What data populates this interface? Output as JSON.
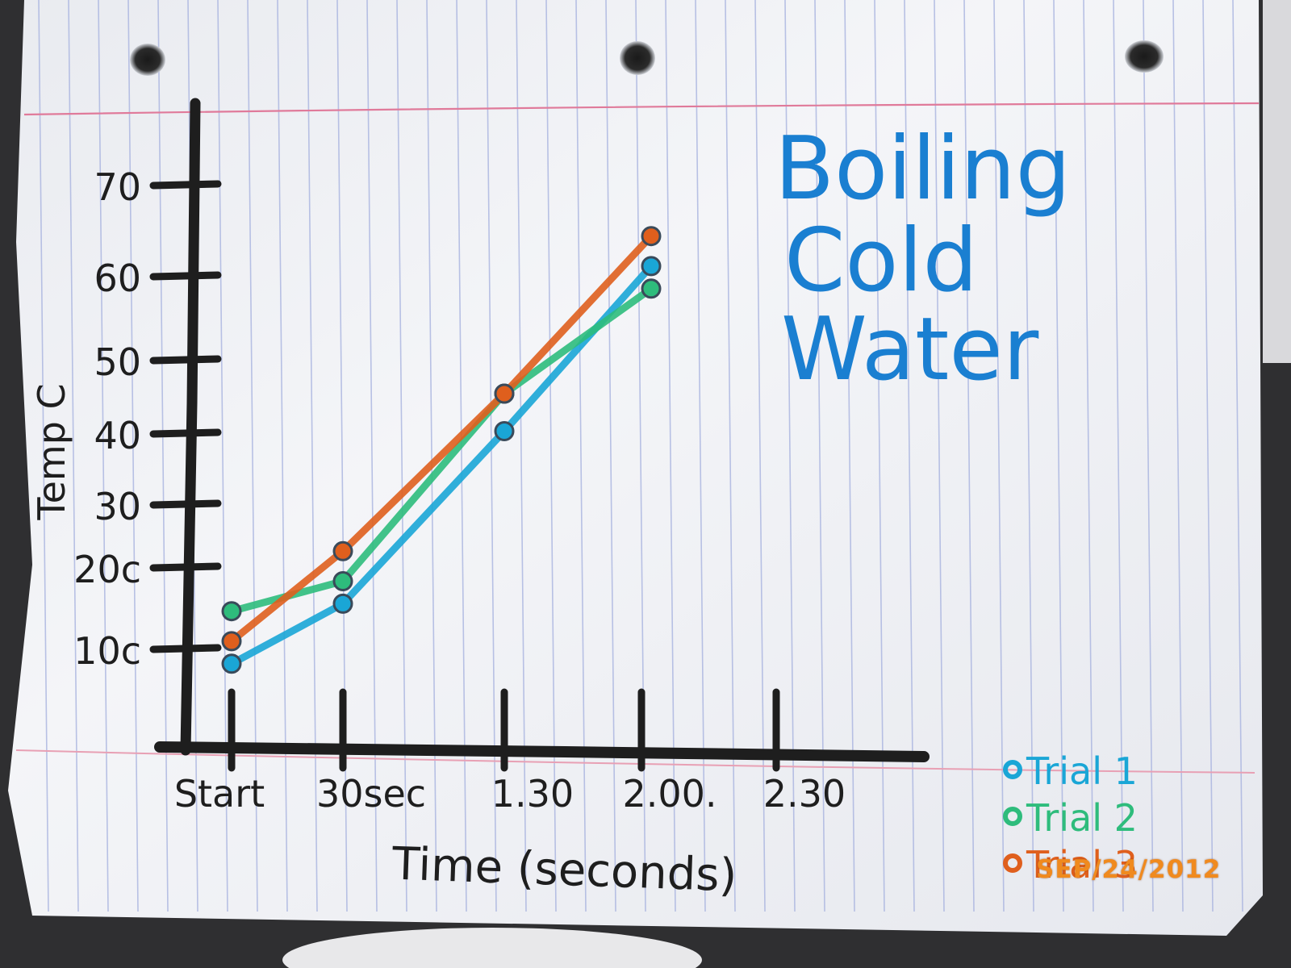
{
  "chart_data": {
    "type": "line",
    "title_lines": [
      "Boiling",
      "Cold",
      "Water"
    ],
    "xlabel": "Time (seconds)",
    "ylabel": "Temp C",
    "categories": [
      "Start",
      "30sec",
      "1.30",
      "2.00.",
      "2.30"
    ],
    "y_tick_labels": [
      "10c",
      "20c",
      "30",
      "40",
      "50",
      "60",
      "70"
    ],
    "y_ticks": [
      10,
      20,
      30,
      40,
      50,
      60,
      70
    ],
    "ylim": [
      0,
      80
    ],
    "grid": false,
    "legend_position": "bottom-right",
    "series": [
      {
        "name": "Trial 1",
        "color": "#1aa6d6",
        "points": [
          [
            0,
            14
          ],
          [
            1,
            22
          ],
          [
            2,
            45
          ],
          [
            3,
            67
          ]
        ]
      },
      {
        "name": "Trial 2",
        "color": "#2ebc7c",
        "points": [
          [
            0,
            21
          ],
          [
            1,
            25
          ],
          [
            2,
            50
          ],
          [
            3,
            64
          ]
        ]
      },
      {
        "name": "Trial 3",
        "color": "#df5f1d",
        "points": [
          [
            0,
            17
          ],
          [
            1,
            29
          ],
          [
            2,
            50
          ],
          [
            3,
            71
          ]
        ]
      }
    ]
  },
  "date_stamp": "SEP/24/2012"
}
